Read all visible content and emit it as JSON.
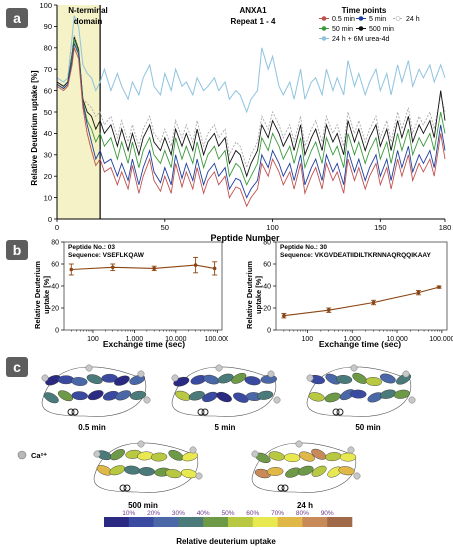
{
  "panel_labels": {
    "a": "a",
    "b": "b",
    "c": "c"
  },
  "panel_a": {
    "title_line1": "ANXA1",
    "title_line2": "Repeat 1 - 4",
    "region_label_line1": "N-terminal",
    "region_label_line2": "domain",
    "legend_title": "Time points"
  },
  "panel_b": {
    "left_peptide_no": "Peptide No.: 03",
    "left_sequence": "Sequence: VSEFLKQAW",
    "right_peptide_no": "Peptide No.: 30",
    "right_sequence": "Sequence: VKGVDEATIIDILTKRNNAQRQQIKAAY"
  },
  "panel_c": {
    "labels": [
      "0.5 min",
      "5 min",
      "50 min",
      "500 min",
      "24 h"
    ],
    "ca_label": "Ca²⁺",
    "scale_ticks": [
      "10%",
      "20%",
      "30%",
      "40%",
      "50%",
      "60%",
      "70%",
      "80%",
      "90%"
    ],
    "scale_title": "Relative deuterium uptake",
    "scale_colors": [
      "#2a2a82",
      "#3a4aa0",
      "#4a68a8",
      "#4a7a7a",
      "#6e9a48",
      "#b8c840",
      "#e8e850",
      "#e0b848",
      "#c88a58",
      "#a06a48"
    ]
  },
  "chart_data": [
    {
      "type": "line",
      "xlabel": "Peptide Number",
      "ylabel": "Relative Deuterium uptake [%]",
      "xlim": [
        0,
        180
      ],
      "ylim": [
        0,
        100
      ],
      "xticks": [
        0,
        50,
        100,
        150,
        180
      ],
      "yticks": [
        0,
        10,
        20,
        30,
        40,
        50,
        60,
        70,
        80,
        90,
        100
      ],
      "highlight_region": [
        0,
        20
      ],
      "grid": false,
      "legend_position": "top-right",
      "x": [
        0,
        3,
        5,
        7,
        8,
        10,
        12,
        14,
        16,
        18,
        20,
        22,
        25,
        28,
        30,
        33,
        35,
        38,
        40,
        43,
        45,
        48,
        50,
        53,
        55,
        58,
        60,
        63,
        65,
        68,
        70,
        73,
        75,
        78,
        80,
        83,
        85,
        88,
        90,
        93,
        95,
        98,
        100,
        103,
        105,
        108,
        110,
        113,
        115,
        118,
        120,
        123,
        125,
        128,
        130,
        133,
        135,
        138,
        140,
        143,
        145,
        148,
        150,
        153,
        155,
        158,
        160,
        163,
        165,
        168,
        170,
        173,
        175,
        178,
        180
      ],
      "series": [
        {
          "name": "0.5 min",
          "color": "#c0504d",
          "values": [
            62,
            60,
            62,
            72,
            80,
            75,
            52,
            40,
            32,
            25,
            28,
            22,
            24,
            16,
            22,
            14,
            25,
            12,
            20,
            28,
            18,
            13,
            20,
            12,
            26,
            15,
            22,
            14,
            24,
            12,
            18,
            22,
            16,
            20,
            10,
            15,
            14,
            6,
            10,
            14,
            26,
            20,
            28,
            22,
            16,
            22,
            14,
            26,
            12,
            20,
            24,
            14,
            26,
            18,
            22,
            12,
            28,
            18,
            24,
            14,
            20,
            26,
            16,
            24,
            14,
            28,
            20,
            30,
            18,
            26,
            22,
            28,
            20,
            40,
            28
          ]
        },
        {
          "name": "5 min",
          "color": "#1f3f9f",
          "values": [
            63,
            61,
            63,
            74,
            82,
            77,
            54,
            44,
            36,
            28,
            32,
            26,
            28,
            20,
            26,
            18,
            28,
            16,
            24,
            32,
            22,
            17,
            24,
            16,
            30,
            19,
            26,
            18,
            28,
            16,
            22,
            26,
            20,
            24,
            14,
            19,
            18,
            10,
            14,
            18,
            30,
            24,
            32,
            26,
            20,
            26,
            18,
            30,
            16,
            24,
            28,
            18,
            30,
            22,
            26,
            16,
            32,
            22,
            28,
            18,
            24,
            30,
            20,
            28,
            18,
            32,
            24,
            34,
            22,
            30,
            26,
            32,
            24,
            44,
            32
          ]
        },
        {
          "name": "24 h",
          "color": "#aaaaaa",
          "values": [
            64,
            62,
            64,
            78,
            86,
            80,
            56,
            54,
            52,
            48,
            50,
            44,
            48,
            38,
            46,
            36,
            44,
            34,
            42,
            48,
            40,
            36,
            42,
            34,
            46,
            38,
            44,
            36,
            46,
            34,
            40,
            44,
            38,
            42,
            30,
            36,
            34,
            24,
            30,
            36,
            48,
            42,
            50,
            44,
            38,
            44,
            36,
            48,
            34,
            42,
            46,
            36,
            48,
            40,
            44,
            34,
            50,
            40,
            46,
            36,
            42,
            48,
            38,
            46,
            36,
            50,
            42,
            52,
            40,
            48,
            44,
            50,
            42,
            58,
            50
          ]
        },
        {
          "name": "50 min",
          "color": "#3a9a3a",
          "values": [
            63,
            61,
            63,
            76,
            84,
            78,
            55,
            46,
            42,
            36,
            40,
            34,
            38,
            28,
            36,
            26,
            36,
            24,
            32,
            38,
            30,
            26,
            32,
            24,
            38,
            28,
            34,
            26,
            36,
            24,
            30,
            34,
            28,
            32,
            20,
            26,
            24,
            16,
            20,
            26,
            38,
            32,
            40,
            34,
            28,
            34,
            26,
            38,
            24,
            32,
            36,
            26,
            38,
            30,
            34,
            24,
            40,
            30,
            36,
            26,
            32,
            38,
            28,
            36,
            26,
            40,
            32,
            42,
            30,
            38,
            34,
            40,
            32,
            50,
            40
          ]
        },
        {
          "name": "500 min",
          "color": "#111111",
          "values": [
            64,
            62,
            64,
            77,
            85,
            79,
            56,
            50,
            48,
            42,
            46,
            40,
            44,
            34,
            42,
            32,
            40,
            30,
            38,
            44,
            36,
            32,
            38,
            30,
            42,
            34,
            40,
            32,
            42,
            30,
            36,
            40,
            34,
            38,
            26,
            32,
            30,
            20,
            26,
            32,
            44,
            38,
            46,
            40,
            34,
            40,
            32,
            44,
            30,
            38,
            42,
            32,
            44,
            36,
            40,
            30,
            46,
            36,
            42,
            32,
            38,
            44,
            34,
            42,
            32,
            46,
            38,
            48,
            36,
            44,
            40,
            46,
            38,
            60,
            46
          ]
        },
        {
          "name": "24 h + 6M urea-4d",
          "color": "#8ec3e0",
          "values": [
            66,
            64,
            66,
            85,
            95,
            90,
            72,
            68,
            66,
            60,
            64,
            70,
            60,
            68,
            62,
            56,
            64,
            58,
            66,
            72,
            62,
            58,
            68,
            60,
            70,
            62,
            64,
            58,
            66,
            60,
            62,
            66,
            60,
            64,
            56,
            60,
            58,
            50,
            56,
            60,
            80,
            70,
            76,
            62,
            58,
            64,
            56,
            70,
            56,
            64,
            66,
            58,
            70,
            60,
            66,
            58,
            74,
            62,
            68,
            58,
            64,
            70,
            60,
            68,
            58,
            72,
            64,
            74,
            62,
            70,
            66,
            72,
            64,
            72,
            66
          ]
        }
      ]
    },
    {
      "type": "line",
      "title": "Peptide No.: 03",
      "xlabel": "Exchange time (sec)",
      "ylabel": "Relative Deuterium uptake [%]",
      "xscale": "log",
      "xticks": [
        "100",
        "1.000",
        "10.000",
        "100.000"
      ],
      "ylim": [
        0,
        80
      ],
      "yticks": [
        0,
        20,
        40,
        60,
        80
      ],
      "x": [
        30,
        300,
        3000,
        30000,
        86400
      ],
      "series": [
        {
          "name": "",
          "color": "#8b4513",
          "values": [
            55,
            57,
            56,
            59,
            56
          ],
          "errors": [
            5,
            3,
            2,
            7,
            6
          ]
        }
      ]
    },
    {
      "type": "line",
      "title": "Peptide No.: 30",
      "xlabel": "Exchange time (sec)",
      "ylabel": "Relative Deuterium uptake [%]",
      "xscale": "log",
      "xticks": [
        "100",
        "1.000",
        "10.000",
        "100.000"
      ],
      "ylim": [
        0,
        80
      ],
      "yticks": [
        0,
        20,
        40,
        60,
        80
      ],
      "x": [
        30,
        300,
        3000,
        30000,
        86400
      ],
      "series": [
        {
          "name": "",
          "color": "#8b4513",
          "values": [
            13,
            18,
            25,
            34,
            39
          ],
          "errors": [
            2,
            2,
            2,
            2,
            1
          ]
        }
      ]
    }
  ]
}
